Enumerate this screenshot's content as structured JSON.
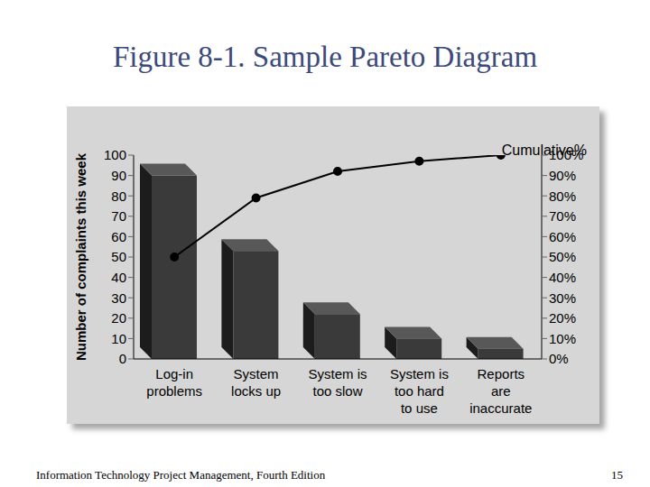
{
  "header": {
    "title": "Figure 8-1. Sample Pareto Diagram"
  },
  "chart_data": {
    "type": "bar",
    "categories": [
      "Log-in problems",
      "System locks up",
      "System is too slow",
      "System is too hard to use",
      "Reports are inaccurate"
    ],
    "y_label": "Number of complaints this week",
    "y2_label": "Cumulative%",
    "ylim": [
      0,
      100
    ],
    "yticks": [
      0,
      10,
      20,
      30,
      40,
      50,
      60,
      70,
      80,
      90,
      100
    ],
    "y2lim": [
      0,
      100
    ],
    "y2ticks": [
      {
        "value": 0,
        "label": "0%"
      },
      {
        "value": 10,
        "label": "10%"
      },
      {
        "value": 20,
        "label": "20%"
      },
      {
        "value": 30,
        "label": "30%"
      },
      {
        "value": 40,
        "label": "40%"
      },
      {
        "value": 50,
        "label": "50%"
      },
      {
        "value": 60,
        "label": "60%"
      },
      {
        "value": 70,
        "label": "70%"
      },
      {
        "value": 80,
        "label": "80%"
      },
      {
        "value": 90,
        "label": "90%"
      },
      {
        "value": 100,
        "label": "100%"
      }
    ],
    "grid": false,
    "series": [
      {
        "type": "bar",
        "color": "#3a3a3a",
        "values": [
          90,
          53,
          22,
          10,
          5
        ]
      },
      {
        "type": "line",
        "axis": "y2",
        "color": "#000000",
        "marker": "circle",
        "values": [
          50,
          79,
          92,
          97,
          100
        ]
      }
    ]
  },
  "footer": {
    "left": "Information Technology Project Management, Fourth Edition",
    "page": "15"
  }
}
